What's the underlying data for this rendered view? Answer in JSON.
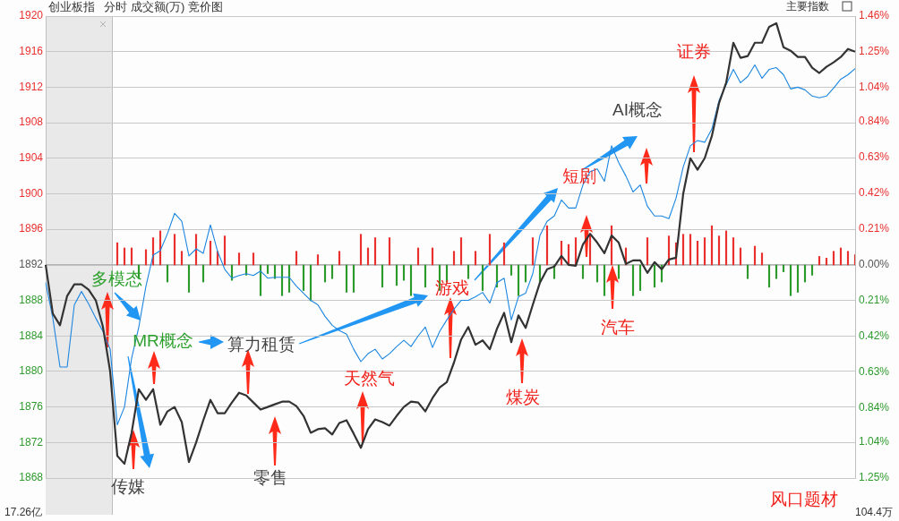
{
  "chart_data": {
    "type": "line",
    "title": "创业板指",
    "subtitle": "分时 成交额(万) 竞价图",
    "categories": [
      null,
      null,
      null,
      null,
      null,
      null,
      null,
      null,
      null,
      null,
      null,
      null,
      null,
      null,
      null,
      null,
      null,
      null,
      null,
      null,
      null,
      null,
      null,
      null,
      null,
      null,
      null,
      null,
      null,
      null,
      null,
      null,
      null,
      null,
      null,
      null,
      null,
      null,
      null,
      null,
      null,
      null,
      null,
      null,
      null,
      null,
      null,
      null,
      null,
      null,
      null,
      null,
      null,
      null,
      null,
      null,
      null,
      null,
      null,
      null,
      null,
      null,
      null,
      null,
      null,
      null,
      null,
      null,
      null,
      null,
      null,
      null,
      null,
      null,
      null,
      null,
      null,
      null,
      null,
      null,
      null,
      null,
      null,
      null,
      null,
      null,
      null,
      null,
      null,
      null,
      null,
      null,
      null,
      null,
      null,
      null,
      null,
      null,
      null,
      null,
      null,
      null,
      null,
      null,
      null,
      null,
      null,
      null,
      null,
      null,
      null,
      null,
      null,
      null
    ],
    "series": [
      {
        "type": "bar",
        "axis": "y2",
        "color": "#e8312f",
        "values": [
          null,
          null,
          null,
          null,
          null,
          null,
          null,
          null,
          null,
          null,
          0.13,
          0.1,
          0.1,
          null,
          0.09,
          0.16,
          0.2,
          null,
          0.18,
          0.08,
          null,
          0.18,
          null,
          0.14,
          0.08,
          0.17,
          null,
          0.07,
          null,
          0.07,
          null,
          null,
          null,
          null,
          null,
          0.08,
          null,
          null,
          0.06,
          null,
          null,
          0.08,
          null,
          null,
          0.18,
          0.1,
          0.16,
          null,
          0.16,
          null,
          null,
          null,
          0.1,
          null,
          0.1,
          null,
          null,
          0.08,
          0.16,
          null,
          0.08,
          null,
          0.18,
          null,
          0.13,
          null,
          null,
          null,
          0.16,
          null,
          0.23,
          null,
          0.14,
          0.12,
          0.16,
          null,
          0.18,
          null,
          null,
          0.23,
          null,
          0.1,
          null,
          null,
          0.16,
          null,
          null,
          0.17,
          0.13,
          0.18,
          0.18,
          0.14,
          0.16,
          0.23,
          0.17,
          0.2,
          0.16,
          0.1,
          null,
          0.11,
          0.07,
          null,
          null,
          null,
          null,
          null,
          null,
          null,
          0.05,
          0.04,
          0.08,
          0.1,
          0.08,
          0.06
        ]
      },
      {
        "type": "bar",
        "axis": "y2",
        "color": "#2e9a2e",
        "values": [
          null,
          null,
          null,
          null,
          null,
          null,
          null,
          null,
          null,
          null,
          null,
          null,
          null,
          -0.08,
          null,
          null,
          null,
          -0.1,
          null,
          null,
          -0.16,
          null,
          -0.1,
          null,
          null,
          null,
          -0.09,
          null,
          -0.06,
          null,
          -0.18,
          -0.05,
          -0.08,
          -0.18,
          -0.16,
          null,
          -0.15,
          -0.21,
          null,
          -0.1,
          -0.08,
          null,
          -0.16,
          -0.16,
          null,
          null,
          null,
          -0.13,
          null,
          -0.12,
          -0.09,
          -0.18,
          null,
          -0.13,
          null,
          -0.15,
          -0.1,
          null,
          null,
          -0.08,
          null,
          -0.15,
          null,
          -0.13,
          null,
          -0.06,
          -0.18,
          -0.1,
          null,
          -0.1,
          null,
          -0.08,
          null,
          null,
          null,
          -0.08,
          null,
          -0.1,
          -0.18,
          null,
          -0.08,
          null,
          -0.18,
          -0.15,
          null,
          -0.13,
          -0.1,
          null,
          null,
          null,
          null,
          null,
          null,
          null,
          null,
          null,
          null,
          null,
          -0.08,
          null,
          null,
          -0.13,
          -0.08,
          -0.04,
          -0.18,
          -0.16,
          -0.1,
          -0.06,
          null,
          null,
          null,
          null,
          null,
          null
        ]
      },
      {
        "color": "#333333",
        "values": [
          1892,
          1886.5,
          1885.2,
          1888.5,
          1889.8,
          1889.8,
          1889.2,
          1888,
          1885,
          1880,
          1870.5,
          1869.6,
          1873.1,
          1878,
          1876.8,
          1878,
          1874,
          1875.5,
          1876,
          1874.3,
          1869.8,
          1872,
          1874.5,
          1876.8,
          1875.3,
          1875.3,
          1876.5,
          1877.6,
          1877.3,
          1876.5,
          1875.7,
          1876,
          1876.3,
          1876.6,
          1876.6,
          1876.1,
          1875,
          1873.1,
          1873.5,
          1873.6,
          1872.9,
          1874.2,
          1874.5,
          1873,
          1871.4,
          1873.5,
          1874.6,
          1874.3,
          1873.9,
          1875,
          1876,
          1876.6,
          1876.5,
          1875.5,
          1877,
          1878.2,
          1878.8,
          1881,
          1883.6,
          1885,
          1883,
          1883.5,
          1882.5,
          1884.8,
          1886.6,
          1883.3,
          1886.3,
          1884.9,
          1887.5,
          1890,
          1891.5,
          1891.8,
          1893,
          1892,
          1891.9,
          1894.3,
          1895.5,
          1894.5,
          1893.3,
          1895.3,
          1894.5,
          1892.1,
          1892.5,
          1892.5,
          1891.1,
          1892.3,
          1891.5,
          1892.6,
          1892.8,
          1900,
          1904,
          1902.7,
          1904,
          1906.5,
          1910.2,
          1912.5,
          1917,
          1915.3,
          1915.5,
          1917,
          1917,
          1918.8,
          1919.2,
          1916.5,
          1916.1,
          1915.4,
          1915.4,
          1914.2,
          1913.6,
          1914.3,
          1914.8,
          1915.4,
          1916.3,
          1916
        ]
      },
      {
        "color": "#1c86e0",
        "values": [
          1890,
          1886,
          1880.5,
          1880.5,
          1887.5,
          1889,
          1887.6,
          1886,
          1884.5,
          1882.5,
          1874,
          1876,
          1881.5,
          1885,
          1889.6,
          1893.1,
          1893.6,
          1895.5,
          1897.8,
          1896.9,
          1893,
          1893.8,
          1893.3,
          1896.5,
          1893.5,
          1891.5,
          1890.5,
          1890.8,
          1891,
          1890.8,
          1891.3,
          1890.5,
          1890.6,
          1890.6,
          1890.6,
          1889.6,
          1888.8,
          1888,
          1887.5,
          1886.2,
          1885.2,
          1884.6,
          1884.2,
          1882.5,
          1881.1,
          1882,
          1882.5,
          1881.4,
          1882,
          1882.8,
          1883.5,
          1882.8,
          1884,
          1885,
          1882.7,
          1884.5,
          1885.8,
          1887,
          1888,
          1888,
          1888.4,
          1888.9,
          1887.7,
          1890,
          1890.5,
          1885.8,
          1888.4,
          1888.8,
          1891,
          1895.3,
          1896.9,
          1897.5,
          1899.3,
          1898.4,
          1898.4,
          1901,
          1902.5,
          1902.8,
          1901.4,
          1905.4,
          1903.5,
          1902,
          1900.2,
          1901,
          1898.6,
          1897.5,
          1897.5,
          1897.2,
          1899.5,
          1903,
          1905.4,
          1906,
          1905.8,
          1907.3,
          1910.5,
          1912.3,
          1914,
          1912.5,
          1913.2,
          1914.5,
          1913,
          1914,
          1914.2,
          1913.4,
          1911.8,
          1912,
          1911.7,
          1911,
          1910.8,
          1911,
          1911.9,
          1912.9,
          1913.4,
          1914.1
        ]
      }
    ],
    "ylim": [
      1868,
      1920
    ],
    "yticks": [
      1868,
      1872,
      1876,
      1880,
      1884,
      1888,
      1892,
      1896,
      1900,
      1904,
      1908,
      1912,
      1916,
      1920
    ],
    "y2lim": [
      -1.25,
      1.46
    ],
    "y2ticks": [
      {
        "value": -1.25,
        "label": "1.25%"
      },
      {
        "value": -1.04,
        "label": "1.04%"
      },
      {
        "value": -0.84,
        "label": "0.84%"
      },
      {
        "value": -0.63,
        "label": "0.63%"
      },
      {
        "value": -0.42,
        "label": "0.42%"
      },
      {
        "value": -0.21,
        "label": "0.21%"
      },
      {
        "value": 0,
        "label": "0.00%"
      },
      {
        "value": 0.21,
        "label": "0.21%"
      },
      {
        "value": 0.42,
        "label": "0.42%"
      },
      {
        "value": 0.63,
        "label": "0.63%"
      },
      {
        "value": 0.84,
        "label": "0.84%"
      },
      {
        "value": 1.04,
        "label": "1.04%"
      },
      {
        "value": 1.25,
        "label": "1.25%"
      },
      {
        "value": 1.46,
        "label": "1.46%"
      }
    ],
    "ref_lines": [
      {
        "axis": "y",
        "value": 1892,
        "color": "#b4b4b4"
      }
    ],
    "grid": "y",
    "marker": "none",
    "line_style": "solid",
    "annotations": [
      "多模态",
      "MR概念",
      "算力租赁",
      "传媒",
      "零售",
      "天然气",
      "游戏",
      "煤炭",
      "汽车",
      "短剧",
      "AI概念",
      "证券",
      "风口题材",
      "主要指数",
      "17.26亿",
      "104.4万"
    ]
  }
}
